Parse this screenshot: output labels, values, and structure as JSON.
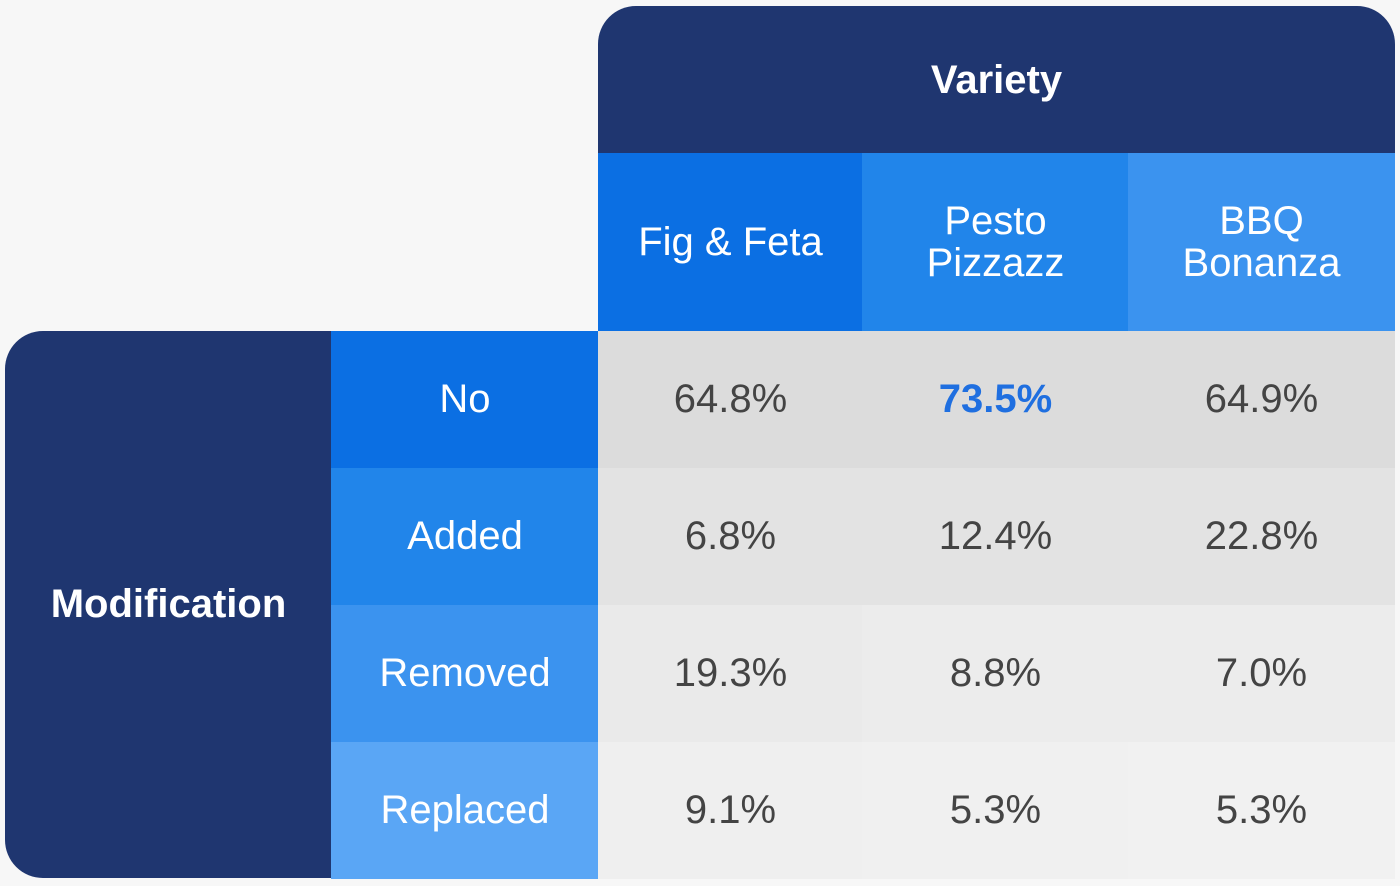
{
  "chart_data": {
    "type": "table",
    "title": "",
    "column_group_label": "Variety",
    "row_group_label": "Modification",
    "columns": [
      "Fig & Feta",
      "Pesto Pizzazz",
      "BBQ Bonanza"
    ],
    "column_lines": [
      [
        "Fig & Feta"
      ],
      [
        "Pesto",
        "Pizzazz"
      ],
      [
        "BBQ",
        "Bonanza"
      ]
    ],
    "rows": [
      "No",
      "Added",
      "Removed",
      "Replaced"
    ],
    "values": [
      [
        64.8,
        73.5,
        64.9
      ],
      [
        6.8,
        12.4,
        22.8
      ],
      [
        19.3,
        8.8,
        7.0
      ],
      [
        9.1,
        5.3,
        5.3
      ]
    ],
    "display_values": [
      [
        "64.8%",
        "73.5%",
        "64.9%"
      ],
      [
        "6.8%",
        "12.4%",
        "22.8%"
      ],
      [
        "19.3%",
        "8.8%",
        "7.0%"
      ],
      [
        "9.1%",
        "5.3%",
        "5.3%"
      ]
    ],
    "unit": "%",
    "highlighted": {
      "row": 0,
      "column": 1
    },
    "colors": {
      "dark_navy": "#1f3670",
      "column_header_fills": [
        "#0b6fe3",
        "#2185ea",
        "#3b93ef"
      ],
      "row_header_fills": [
        "#0b6fe3",
        "#2185ea",
        "#3b93ef",
        "#5aa6f5"
      ],
      "cell_fills": [
        [
          "#dcdcdc",
          "#dcdcdc",
          "#dcdcdc"
        ],
        [
          "#e3e3e3",
          "#e3e3e3",
          "#e3e3e3"
        ],
        [
          "#eaeaea",
          "#ececec",
          "#ececec"
        ],
        [
          "#efefef",
          "#f0f0f0",
          "#f1f1f1"
        ]
      ],
      "highlight_text": "#1f6fe0",
      "cell_text": "#444444",
      "header_text": "#ffffff"
    }
  }
}
